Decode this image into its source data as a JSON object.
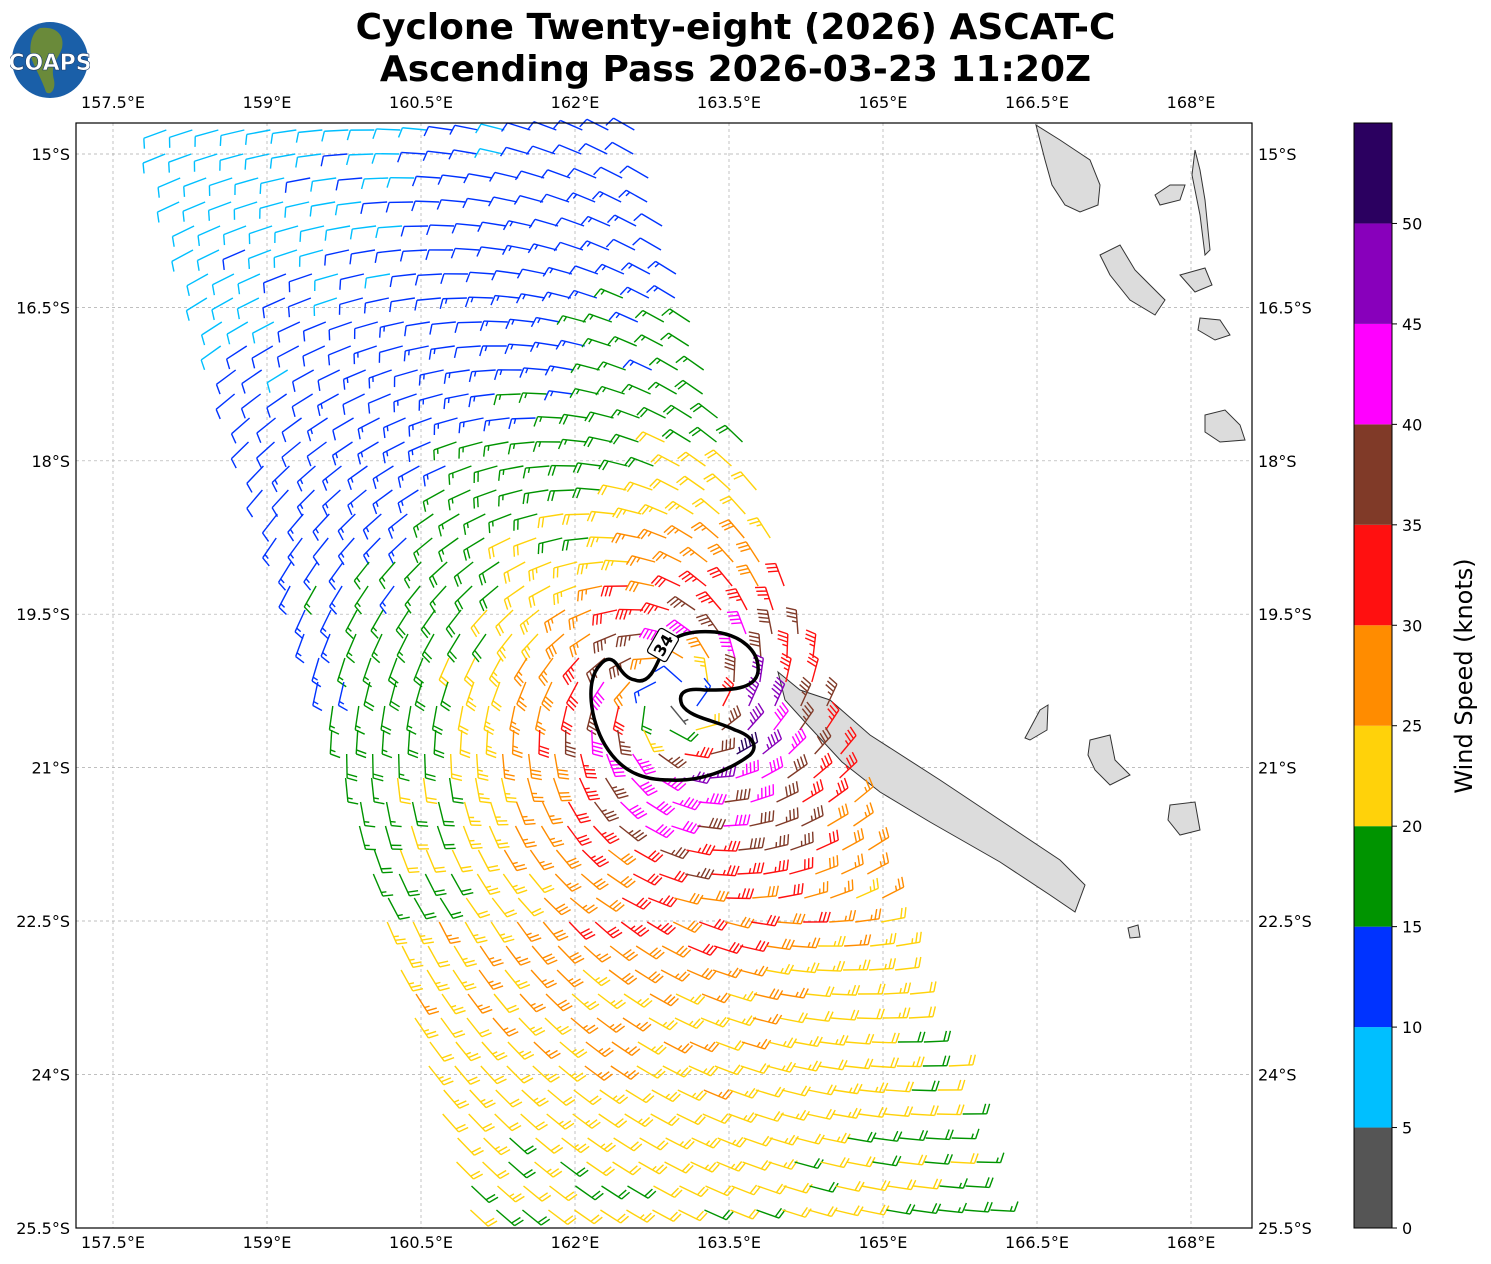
{
  "title": {
    "line1": "Cyclone Twenty-eight (2026) ASCAT-C",
    "line2": "Ascending Pass 2026-03-23 11:20Z"
  },
  "logo": {
    "text": "COAPS"
  },
  "map": {
    "lon_ticks": [
      "157.5°E",
      "159°E",
      "160.5°E",
      "162°E",
      "163.5°E",
      "165°E",
      "166.5°E",
      "168°E"
    ],
    "lat_ticks": [
      "15°S",
      "16.5°S",
      "18°S",
      "19.5°S",
      "21°S",
      "22.5°S",
      "24°S",
      "25.5°S"
    ],
    "contour_label": "34",
    "gridlines": true
  },
  "colorbar": {
    "label": "Wind Speed (knots)",
    "ticks": [
      "0",
      "5",
      "10",
      "15",
      "20",
      "25",
      "30",
      "35",
      "40",
      "45",
      "50"
    ],
    "colors": [
      "#555555",
      "#00bfff",
      "#0033ff",
      "#009400",
      "#ffd20a",
      "#ff8c00",
      "#ff1010",
      "#803a28",
      "#ff00ff",
      "#8800bb",
      "#2b0060"
    ]
  }
}
